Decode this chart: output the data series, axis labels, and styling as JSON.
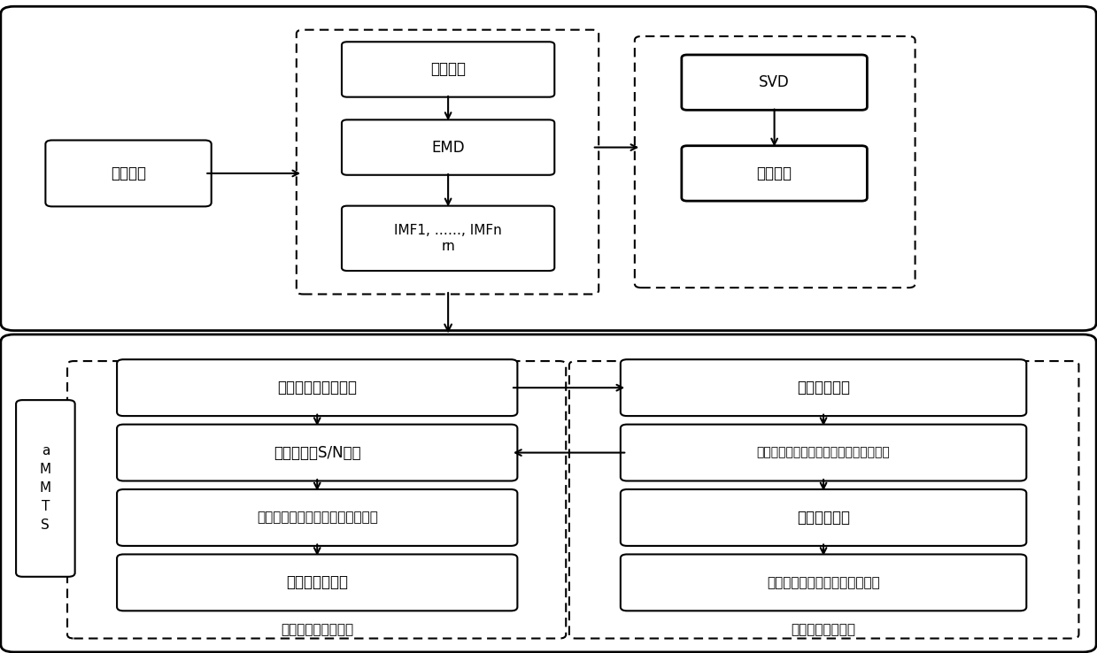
{
  "bg_color": "#ffffff",
  "top_section": {
    "yuanshi": "原始信号",
    "xiaobo": "小波去噪",
    "emd": "EMD",
    "imf": "IMF1, ……, IMFn\nrn",
    "svd": "SVD",
    "tezheng": "特征矩阵"
  },
  "bottom_left": {
    "box1": "建立多分类基准数据",
    "box2": "选择合适的S/N序列",
    "box3": "决定各基准数据最有效的特征序列",
    "box4": "对故障进行分类",
    "label": "多分类马氏田口方法",
    "side_label": "a\nM\nM\nT\nS"
  },
  "bottom_right": {
    "box1": "生成马氏空间",
    "box2": "计算到基准数据的马氏距离，选取最小值",
    "box3": "判断识别效果",
    "box4": "再次计算马氏距离，选取最小值",
    "label": "特征选择改进算法"
  }
}
